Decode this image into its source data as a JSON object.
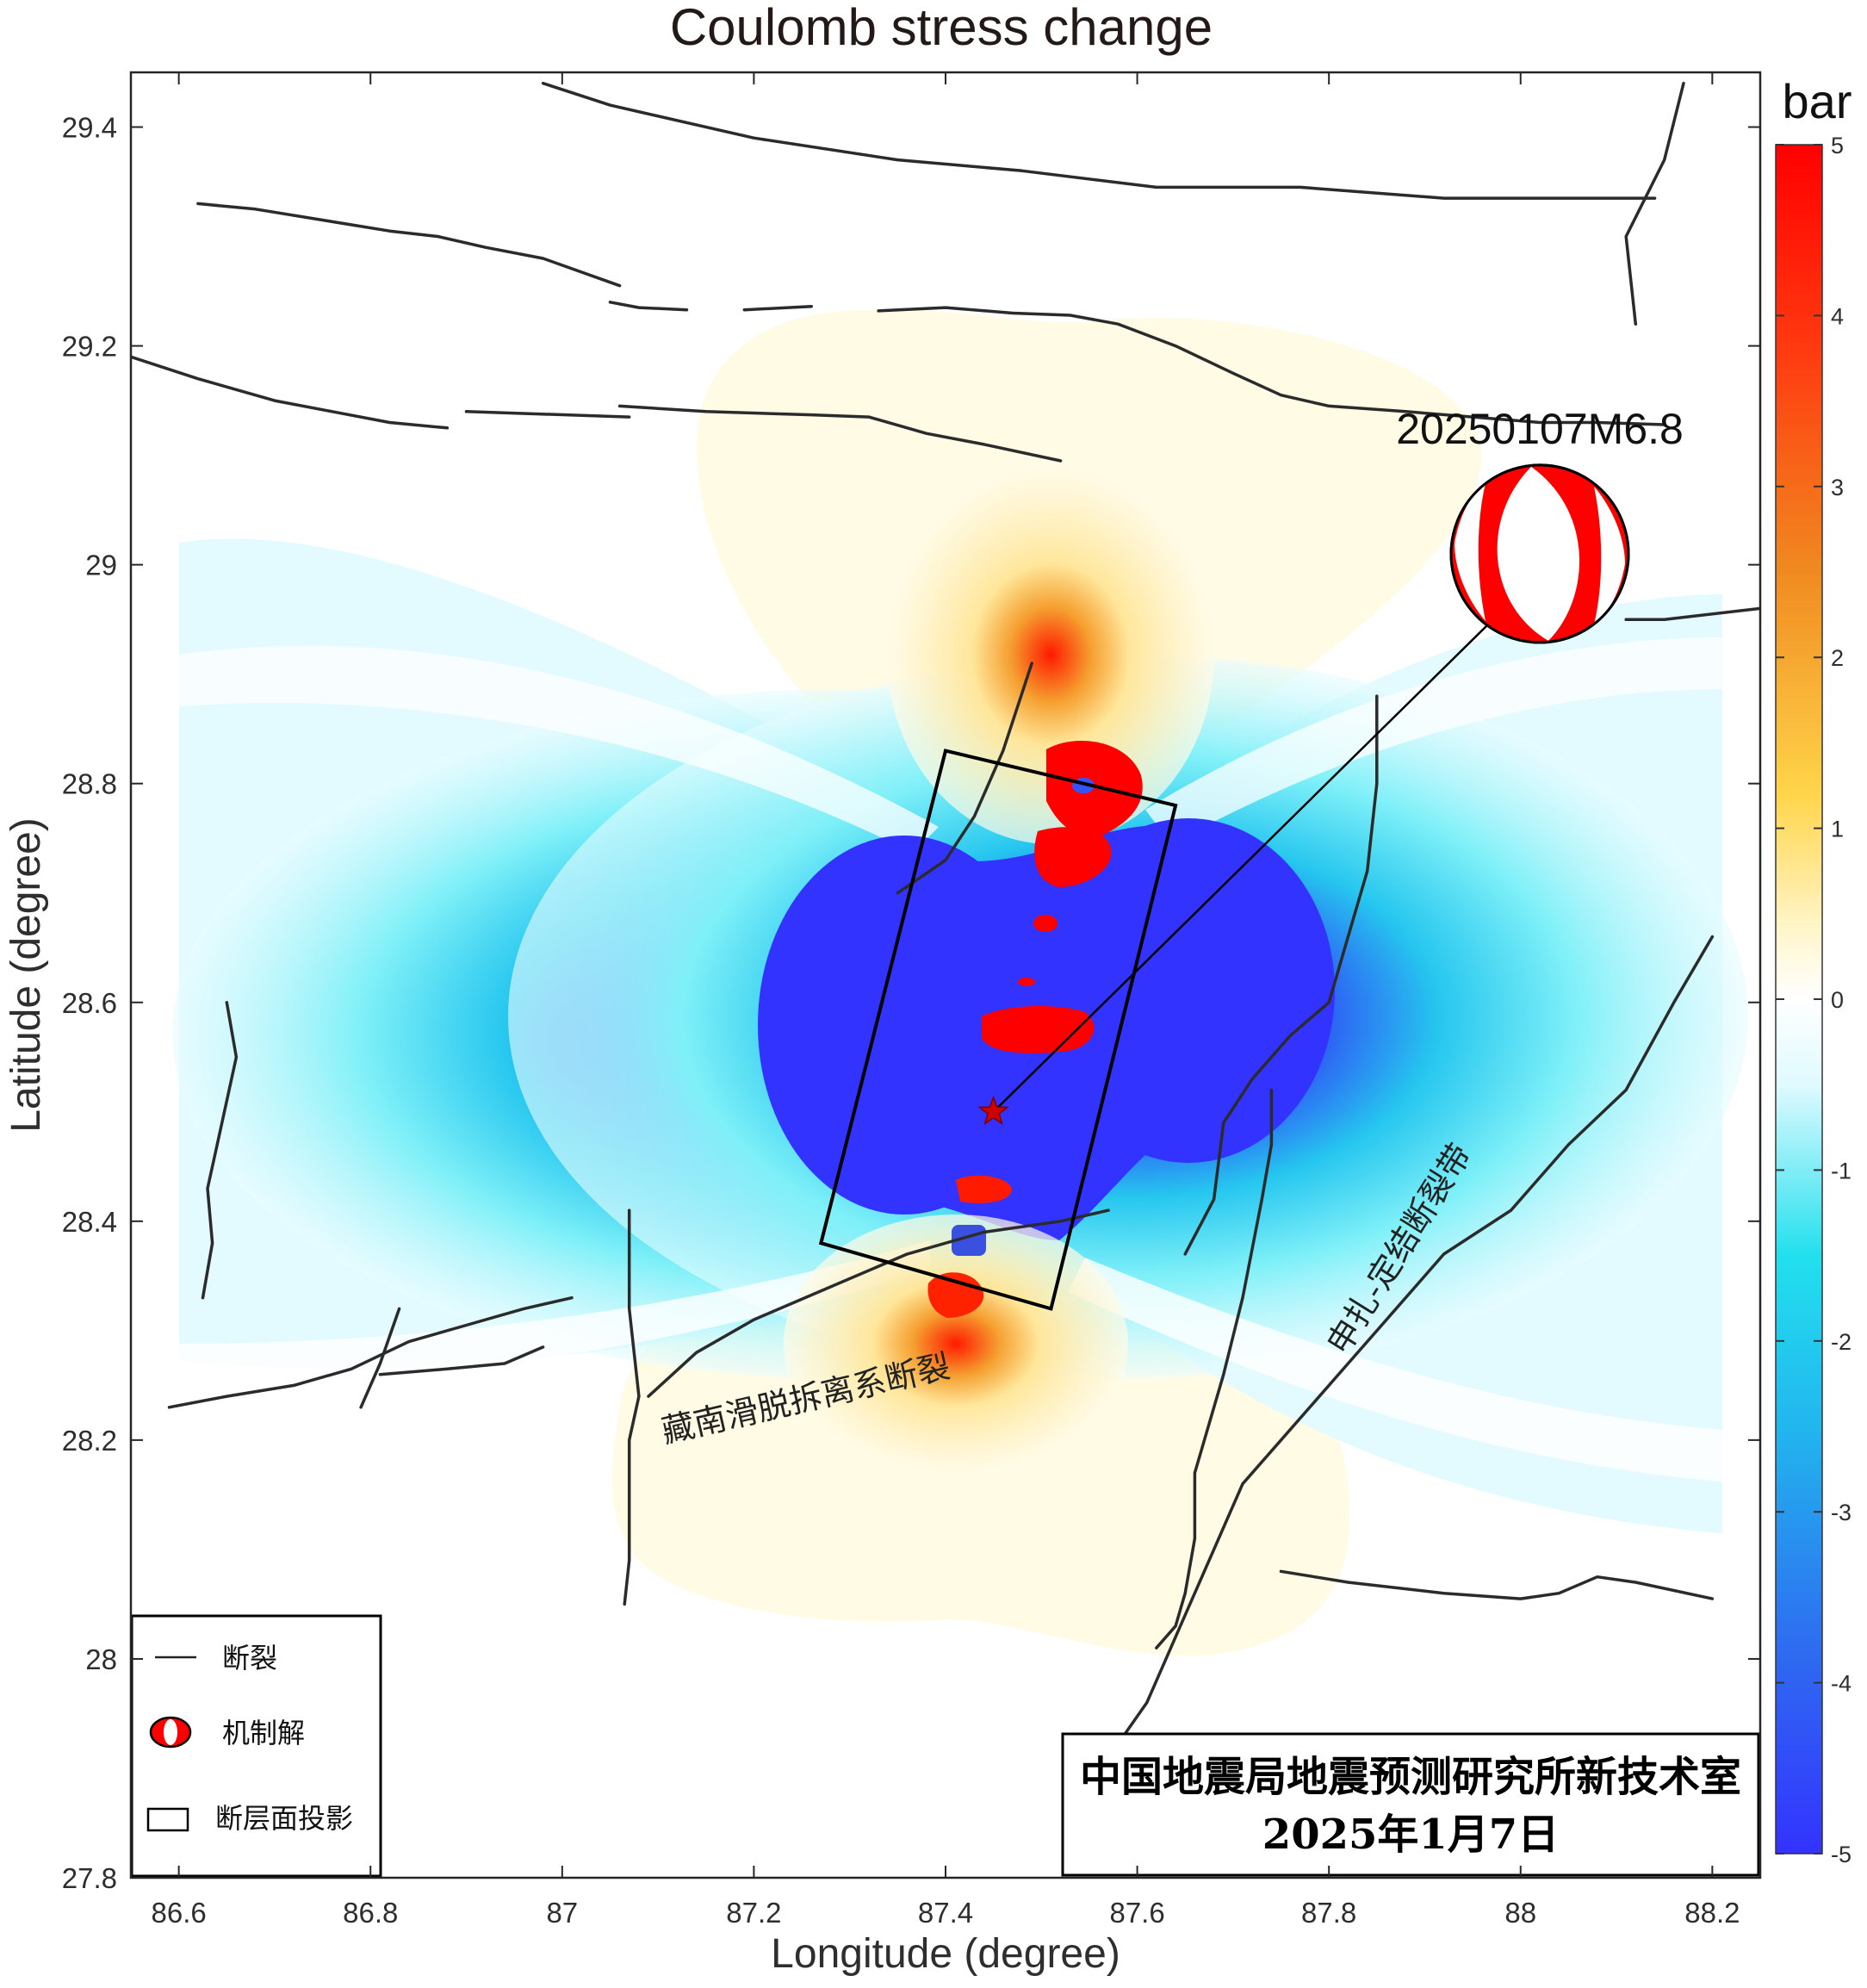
{
  "title": "Coulomb stress change",
  "axes": {
    "xlabel": "Longitude (degree)",
    "ylabel": "Latitude (degree)",
    "xlim": [
      86.55,
      88.25
    ],
    "ylim": [
      27.8,
      29.45
    ],
    "xticks": [
      {
        "value": 86.6,
        "label": "86.6"
      },
      {
        "value": 86.8,
        "label": "86.8"
      },
      {
        "value": 87.0,
        "label": "87"
      },
      {
        "value": 87.2,
        "label": "87.2"
      },
      {
        "value": 87.4,
        "label": "87.4"
      },
      {
        "value": 87.6,
        "label": "87.6"
      },
      {
        "value": 87.8,
        "label": "87.8"
      },
      {
        "value": 88.0,
        "label": "88"
      },
      {
        "value": 88.2,
        "label": "88.2"
      }
    ],
    "yticks": [
      {
        "value": 27.8,
        "label": "27.8"
      },
      {
        "value": 28.0,
        "label": "28"
      },
      {
        "value": 28.2,
        "label": "28.2"
      },
      {
        "value": 28.4,
        "label": "28.4"
      },
      {
        "value": 28.6,
        "label": "28.6"
      },
      {
        "value": 28.8,
        "label": "28.8"
      },
      {
        "value": 29.0,
        "label": "29"
      },
      {
        "value": 29.2,
        "label": "29.2"
      },
      {
        "value": 29.4,
        "label": "29.4"
      }
    ]
  },
  "colorbar": {
    "unit": "bar",
    "min": -5,
    "max": 5,
    "ticks": [
      {
        "value": 5,
        "label": "5"
      },
      {
        "value": 4,
        "label": "4"
      },
      {
        "value": 3,
        "label": "3"
      },
      {
        "value": 2,
        "label": "2"
      },
      {
        "value": 1,
        "label": "1"
      },
      {
        "value": 0,
        "label": "0"
      },
      {
        "value": -1,
        "label": "-1"
      },
      {
        "value": -2,
        "label": "-2"
      },
      {
        "value": -3,
        "label": "-3"
      },
      {
        "value": -4,
        "label": "-4"
      },
      {
        "value": -5,
        "label": "-5"
      }
    ],
    "colors": {
      "neg_max": "#3333ff",
      "neg_mid": "#22ccee",
      "zero": "#ffffff",
      "pos_mid": "#ffd54a",
      "pos_max": "#ff0000"
    }
  },
  "event": {
    "label": "20250107M6.8",
    "epicenter": {
      "lon": 87.45,
      "lat": 28.5
    },
    "beachball": {
      "lon": 88.02,
      "lat": 29.01
    },
    "epicenter_color": "#cc0000",
    "beachball_color": "#ff0000"
  },
  "fault_plane_projection": [
    {
      "lon": 87.4,
      "lat": 28.83
    },
    {
      "lon": 87.64,
      "lat": 28.78
    },
    {
      "lon": 87.51,
      "lat": 28.32
    },
    {
      "lon": 87.27,
      "lat": 28.38
    }
  ],
  "fault_labels": {
    "south_tibet": "藏南滑脱拆离系断裂",
    "shenzha": "申扎-定结断裂带"
  },
  "legend": {
    "fault": "断裂",
    "mechanism": "机制解",
    "projection": "断层面投影"
  },
  "credit": {
    "line1": "中国地震局地震预测研究所新技术室",
    "line2": "2025年1月7日"
  },
  "fault_color": "#2b2b2b",
  "faults": [
    [
      [
        86.98,
        29.44
      ],
      [
        87.05,
        29.42
      ],
      [
        87.2,
        29.39
      ],
      [
        87.35,
        29.37
      ],
      [
        87.48,
        29.36
      ],
      [
        87.62,
        29.345
      ],
      [
        87.77,
        29.345
      ],
      [
        87.92,
        29.335
      ],
      [
        88.05,
        29.335
      ],
      [
        88.14,
        29.335
      ]
    ],
    [
      [
        86.62,
        29.33
      ],
      [
        86.68,
        29.325
      ],
      [
        86.75,
        29.315
      ],
      [
        86.82,
        29.305
      ],
      [
        86.87,
        29.3
      ],
      [
        86.92,
        29.29
      ],
      [
        86.98,
        29.28
      ],
      [
        87.06,
        29.255
      ]
    ],
    [
      [
        87.05,
        29.24
      ],
      [
        87.08,
        29.235
      ],
      [
        87.13,
        29.233
      ]
    ],
    [
      [
        87.19,
        29.233
      ],
      [
        87.26,
        29.236
      ]
    ],
    [
      [
        87.33,
        29.232
      ],
      [
        87.4,
        29.235
      ],
      [
        87.47,
        29.23
      ],
      [
        87.53,
        29.228
      ],
      [
        87.58,
        29.22
      ],
      [
        87.64,
        29.2
      ],
      [
        87.7,
        29.175
      ],
      [
        87.75,
        29.155
      ],
      [
        87.8,
        29.145
      ],
      [
        87.88,
        29.14
      ],
      [
        87.95,
        29.135
      ],
      [
        88.02,
        29.13
      ],
      [
        88.08,
        29.13
      ],
      [
        88.15,
        29.128
      ]
    ],
    [
      [
        86.55,
        29.19
      ],
      [
        86.62,
        29.17
      ],
      [
        86.7,
        29.15
      ],
      [
        86.76,
        29.14
      ],
      [
        86.82,
        29.13
      ],
      [
        86.88,
        29.125
      ]
    ],
    [
      [
        86.9,
        29.14
      ],
      [
        87.07,
        29.135
      ]
    ],
    [
      [
        87.06,
        29.145
      ],
      [
        87.15,
        29.14
      ],
      [
        87.26,
        29.137
      ],
      [
        87.32,
        29.135
      ],
      [
        87.38,
        29.12
      ],
      [
        87.44,
        29.11
      ],
      [
        87.52,
        29.095
      ]
    ],
    [
      [
        88.17,
        29.44
      ],
      [
        88.15,
        29.37
      ],
      [
        88.11,
        29.3
      ],
      [
        88.12,
        29.22
      ]
    ],
    [
      [
        88.11,
        28.95
      ],
      [
        88.15,
        28.95
      ],
      [
        88.25,
        28.96
      ]
    ],
    [
      [
        87.49,
        28.91
      ],
      [
        87.46,
        28.83
      ],
      [
        87.43,
        28.77
      ],
      [
        87.4,
        28.73
      ],
      [
        87.35,
        28.7
      ]
    ],
    [
      [
        87.85,
        28.88
      ],
      [
        87.85,
        28.8
      ],
      [
        87.84,
        28.72
      ],
      [
        87.82,
        28.66
      ],
      [
        87.8,
        28.6
      ],
      [
        87.76,
        28.57
      ],
      [
        87.72,
        28.53
      ],
      [
        87.69,
        28.49
      ],
      [
        87.68,
        28.42
      ],
      [
        87.65,
        28.37
      ]
    ],
    [
      [
        87.74,
        28.52
      ],
      [
        87.74,
        28.47
      ],
      [
        87.73,
        28.42
      ],
      [
        87.71,
        28.33
      ],
      [
        87.69,
        28.26
      ],
      [
        87.66,
        28.17
      ],
      [
        87.66,
        28.11
      ],
      [
        87.65,
        28.06
      ],
      [
        87.64,
        28.03
      ],
      [
        87.62,
        28.01
      ]
    ],
    [
      [
        88.2,
        28.66
      ],
      [
        88.16,
        28.6
      ],
      [
        88.11,
        28.52
      ],
      [
        88.05,
        28.47
      ],
      [
        87.99,
        28.41
      ],
      [
        87.92,
        28.37
      ],
      [
        87.86,
        28.31
      ],
      [
        87.82,
        28.27
      ],
      [
        87.77,
        28.22
      ],
      [
        87.71,
        28.16
      ],
      [
        87.68,
        28.1
      ],
      [
        87.65,
        28.04
      ],
      [
        87.61,
        27.96
      ],
      [
        87.57,
        27.91
      ]
    ],
    [
      [
        87.75,
        28.08
      ],
      [
        87.82,
        28.07
      ],
      [
        87.92,
        28.06
      ],
      [
        88.0,
        28.055
      ],
      [
        88.04,
        28.06
      ],
      [
        88.08,
        28.075
      ],
      [
        88.12,
        28.07
      ],
      [
        88.2,
        28.055
      ]
    ],
    [
      [
        87.07,
        28.41
      ],
      [
        87.07,
        28.32
      ],
      [
        87.08,
        28.24
      ],
      [
        87.07,
        28.2
      ],
      [
        87.07,
        28.14
      ],
      [
        87.07,
        28.09
      ],
      [
        87.065,
        28.05
      ]
    ],
    [
      [
        87.09,
        28.24
      ],
      [
        87.14,
        28.28
      ],
      [
        87.2,
        28.31
      ],
      [
        87.28,
        28.34
      ],
      [
        87.36,
        28.37
      ],
      [
        87.44,
        28.39
      ],
      [
        87.52,
        28.4
      ],
      [
        87.57,
        28.41
      ]
    ],
    [
      [
        86.59,
        28.23
      ],
      [
        86.65,
        28.24
      ],
      [
        86.72,
        28.25
      ],
      [
        86.78,
        28.265
      ],
      [
        86.84,
        28.29
      ],
      [
        86.9,
        28.305
      ],
      [
        86.96,
        28.32
      ],
      [
        87.01,
        28.33
      ]
    ],
    [
      [
        86.79,
        28.23
      ],
      [
        86.81,
        28.27
      ],
      [
        86.83,
        28.32
      ]
    ],
    [
      [
        86.81,
        28.26
      ],
      [
        86.88,
        28.265
      ],
      [
        86.94,
        28.27
      ],
      [
        86.98,
        28.285
      ]
    ],
    [
      [
        86.65,
        28.6
      ],
      [
        86.66,
        28.55
      ],
      [
        86.65,
        28.51
      ],
      [
        86.64,
        28.47
      ],
      [
        86.63,
        28.43
      ],
      [
        86.635,
        28.38
      ],
      [
        86.625,
        28.33
      ]
    ]
  ]
}
